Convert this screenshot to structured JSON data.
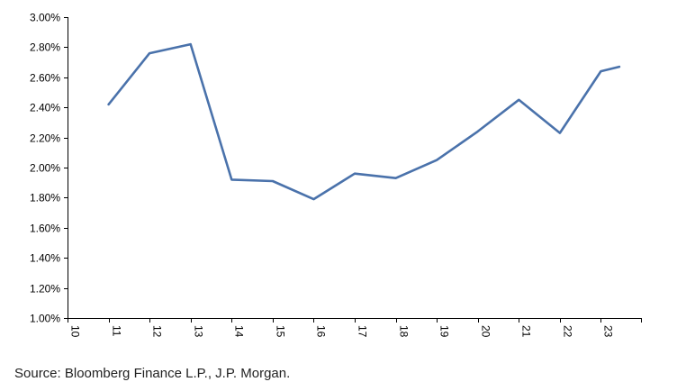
{
  "chart_data": {
    "type": "line",
    "title": "",
    "xlabel": "",
    "ylabel": "",
    "x_tick_labels": [
      "10",
      "11",
      "12",
      "13",
      "14",
      "15",
      "16",
      "17",
      "18",
      "19",
      "20",
      "21",
      "22",
      "23"
    ],
    "y_tick_labels": [
      "1.00%",
      "1.20%",
      "1.40%",
      "1.60%",
      "1.80%",
      "2.00%",
      "2.20%",
      "2.40%",
      "2.60%",
      "2.80%",
      "3.00%"
    ],
    "xlim": [
      10,
      24
    ],
    "ylim": [
      1.0,
      3.0
    ],
    "grid": false,
    "legend": "none",
    "series": [
      {
        "color": "#4a72ab",
        "x": [
          11,
          12,
          13,
          14,
          15,
          16,
          17,
          18,
          19,
          20,
          21,
          22,
          23,
          23.45
        ],
        "y": [
          2.42,
          2.76,
          2.82,
          1.92,
          1.91,
          1.79,
          1.96,
          1.93,
          2.05,
          2.24,
          2.45,
          2.23,
          2.64,
          2.67
        ]
      }
    ]
  },
  "source": "Source: Bloomberg Finance L.P., J.P. Morgan."
}
